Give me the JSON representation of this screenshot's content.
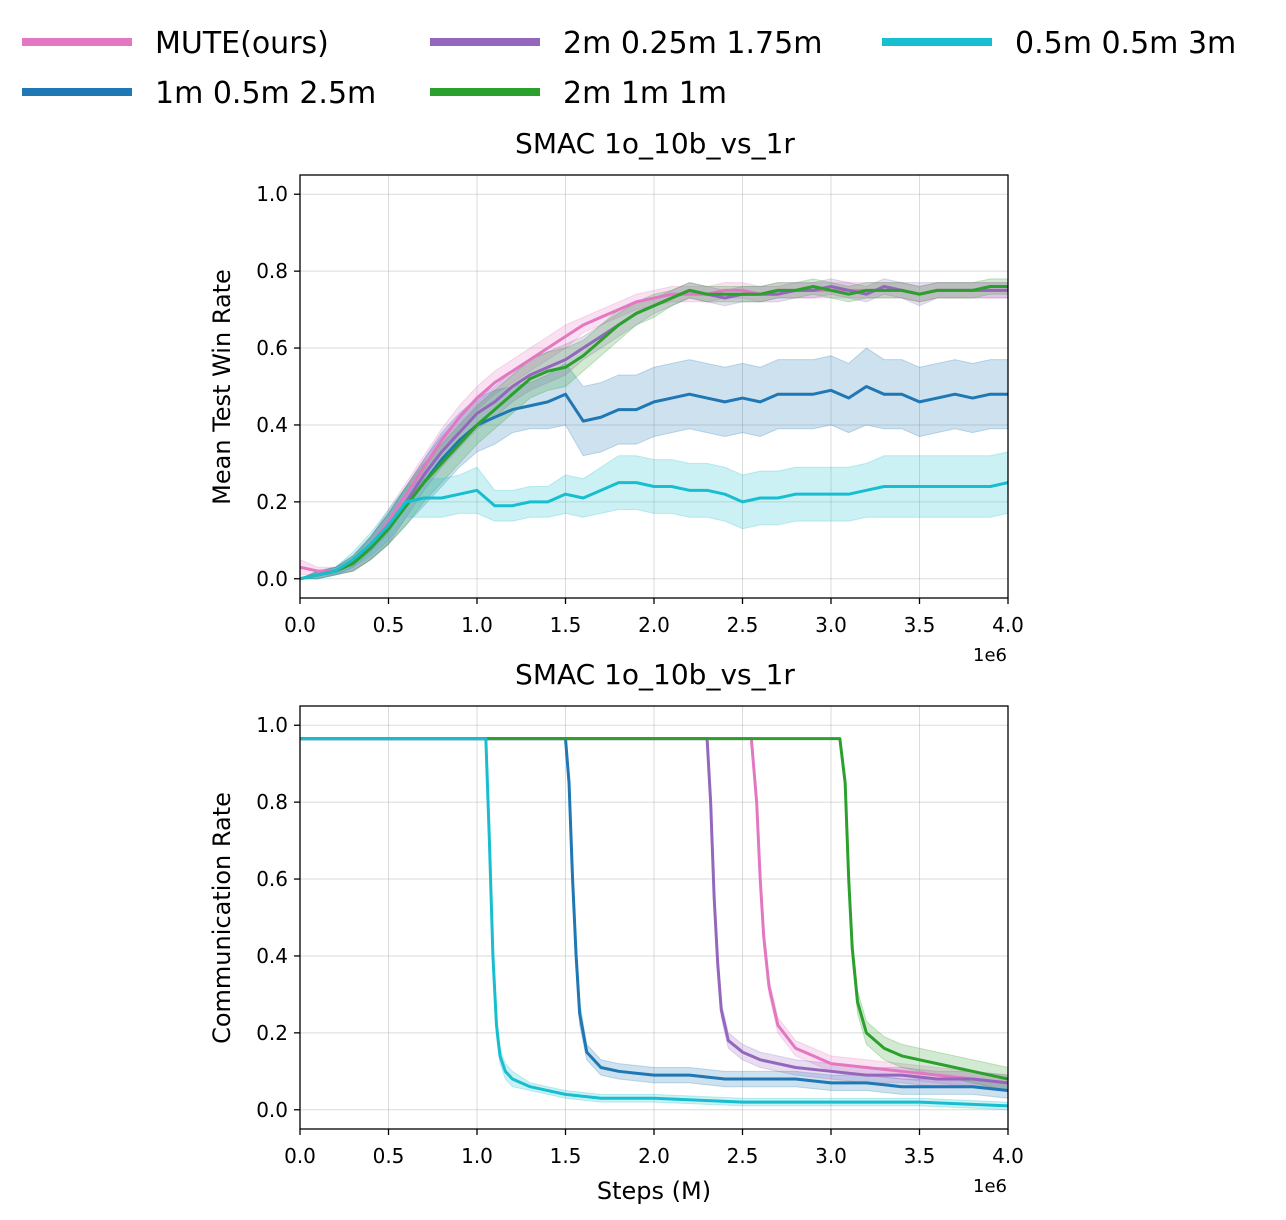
{
  "legend": {
    "entries": [
      {
        "label": "MUTE(ours)",
        "color": "#e377c2"
      },
      {
        "label": "1m 0.5m 2.5m",
        "color": "#1f77b4"
      },
      {
        "label": "2m 0.25m 1.75m",
        "color": "#9467bd"
      },
      {
        "label": "2m 1m 1m",
        "color": "#2ca02c"
      },
      {
        "label": "0.5m 0.5m 3m",
        "color": "#17becf"
      }
    ]
  },
  "chart_data": [
    {
      "type": "line",
      "title": "SMAC 1o_10b_vs_1r",
      "xlabel": "",
      "ylabel": "Mean Test Win Rate",
      "x_offset_label": "1e6",
      "xlim": [
        0,
        4.0
      ],
      "ylim": [
        -0.05,
        1.05
      ],
      "xticks": [
        "0.0",
        "0.5",
        "1.0",
        "1.5",
        "2.0",
        "2.5",
        "3.0",
        "3.5",
        "4.0"
      ],
      "yticks": [
        "0.0",
        "0.2",
        "0.4",
        "0.6",
        "0.8",
        "1.0"
      ],
      "grid": true,
      "series": [
        {
          "name": "MUTE(ours)",
          "color": "#e377c2",
          "x": [
            0,
            0.1,
            0.2,
            0.3,
            0.4,
            0.5,
            0.6,
            0.7,
            0.8,
            0.9,
            1.0,
            1.1,
            1.2,
            1.3,
            1.4,
            1.5,
            1.6,
            1.7,
            1.8,
            1.9,
            2.0,
            2.1,
            2.2,
            2.3,
            2.4,
            2.5,
            2.6,
            2.7,
            2.8,
            2.9,
            3.0,
            3.1,
            3.2,
            3.3,
            3.4,
            3.5,
            3.6,
            3.7,
            3.8,
            3.9,
            4.0
          ],
          "y": [
            0.03,
            0.02,
            0.02,
            0.04,
            0.09,
            0.15,
            0.22,
            0.29,
            0.36,
            0.42,
            0.47,
            0.51,
            0.54,
            0.57,
            0.6,
            0.63,
            0.66,
            0.68,
            0.7,
            0.72,
            0.73,
            0.74,
            0.74,
            0.74,
            0.75,
            0.75,
            0.74,
            0.75,
            0.75,
            0.75,
            0.75,
            0.75,
            0.75,
            0.75,
            0.75,
            0.74,
            0.75,
            0.75,
            0.75,
            0.75,
            0.75
          ],
          "band": [
            0.02,
            0.01,
            0.01,
            0.01,
            0.02,
            0.03,
            0.03,
            0.03,
            0.03,
            0.03,
            0.03,
            0.03,
            0.03,
            0.03,
            0.03,
            0.03,
            0.02,
            0.02,
            0.02,
            0.02,
            0.02,
            0.02,
            0.02,
            0.02,
            0.02,
            0.02,
            0.02,
            0.02,
            0.02,
            0.02,
            0.02,
            0.02,
            0.02,
            0.02,
            0.02,
            0.02,
            0.02,
            0.02,
            0.02,
            0.02,
            0.02
          ]
        },
        {
          "name": "1m 0.5m 2.5m",
          "color": "#1f77b4",
          "x": [
            0,
            0.1,
            0.2,
            0.3,
            0.4,
            0.5,
            0.6,
            0.7,
            0.8,
            0.9,
            1.0,
            1.1,
            1.2,
            1.3,
            1.4,
            1.5,
            1.6,
            1.7,
            1.8,
            1.9,
            2.0,
            2.1,
            2.2,
            2.3,
            2.4,
            2.5,
            2.6,
            2.7,
            2.8,
            2.9,
            3.0,
            3.1,
            3.2,
            3.3,
            3.4,
            3.5,
            3.6,
            3.7,
            3.8,
            3.9,
            4.0
          ],
          "y": [
            0.0,
            0.01,
            0.02,
            0.04,
            0.08,
            0.13,
            0.19,
            0.25,
            0.31,
            0.36,
            0.4,
            0.42,
            0.44,
            0.45,
            0.46,
            0.48,
            0.41,
            0.42,
            0.44,
            0.44,
            0.46,
            0.47,
            0.48,
            0.47,
            0.46,
            0.47,
            0.46,
            0.48,
            0.48,
            0.48,
            0.49,
            0.47,
            0.5,
            0.48,
            0.48,
            0.46,
            0.47,
            0.48,
            0.47,
            0.48,
            0.48
          ],
          "band": [
            0.0,
            0.01,
            0.01,
            0.02,
            0.03,
            0.04,
            0.05,
            0.06,
            0.07,
            0.07,
            0.07,
            0.07,
            0.06,
            0.06,
            0.07,
            0.08,
            0.09,
            0.09,
            0.09,
            0.09,
            0.09,
            0.09,
            0.09,
            0.09,
            0.09,
            0.09,
            0.09,
            0.09,
            0.09,
            0.09,
            0.09,
            0.09,
            0.1,
            0.09,
            0.09,
            0.09,
            0.09,
            0.09,
            0.09,
            0.09,
            0.09
          ]
        },
        {
          "name": "2m 0.25m 1.75m",
          "color": "#9467bd",
          "x": [
            0,
            0.1,
            0.2,
            0.3,
            0.4,
            0.5,
            0.6,
            0.7,
            0.8,
            0.9,
            1.0,
            1.1,
            1.2,
            1.3,
            1.4,
            1.5,
            1.6,
            1.7,
            1.8,
            1.9,
            2.0,
            2.1,
            2.2,
            2.3,
            2.4,
            2.5,
            2.6,
            2.7,
            2.8,
            2.9,
            3.0,
            3.1,
            3.2,
            3.3,
            3.4,
            3.5,
            3.6,
            3.7,
            3.8,
            3.9,
            4.0
          ],
          "y": [
            0.0,
            0.01,
            0.02,
            0.04,
            0.08,
            0.13,
            0.2,
            0.27,
            0.33,
            0.38,
            0.43,
            0.46,
            0.5,
            0.53,
            0.55,
            0.57,
            0.6,
            0.63,
            0.66,
            0.69,
            0.71,
            0.73,
            0.75,
            0.74,
            0.73,
            0.74,
            0.74,
            0.74,
            0.75,
            0.75,
            0.76,
            0.75,
            0.74,
            0.76,
            0.75,
            0.74,
            0.75,
            0.75,
            0.75,
            0.75,
            0.75
          ],
          "band": [
            0.0,
            0.01,
            0.01,
            0.02,
            0.03,
            0.04,
            0.04,
            0.04,
            0.04,
            0.04,
            0.04,
            0.04,
            0.04,
            0.04,
            0.04,
            0.04,
            0.03,
            0.03,
            0.03,
            0.03,
            0.02,
            0.02,
            0.02,
            0.02,
            0.02,
            0.02,
            0.02,
            0.02,
            0.02,
            0.02,
            0.02,
            0.02,
            0.02,
            0.02,
            0.02,
            0.03,
            0.02,
            0.02,
            0.02,
            0.02,
            0.02
          ]
        },
        {
          "name": "2m 1m 1m",
          "color": "#2ca02c",
          "x": [
            0,
            0.1,
            0.2,
            0.3,
            0.4,
            0.5,
            0.6,
            0.7,
            0.8,
            0.9,
            1.0,
            1.1,
            1.2,
            1.3,
            1.4,
            1.5,
            1.6,
            1.7,
            1.8,
            1.9,
            2.0,
            2.1,
            2.2,
            2.3,
            2.4,
            2.5,
            2.6,
            2.7,
            2.8,
            2.9,
            3.0,
            3.1,
            3.2,
            3.3,
            3.4,
            3.5,
            3.6,
            3.7,
            3.8,
            3.9,
            4.0
          ],
          "y": [
            0.0,
            0.01,
            0.02,
            0.04,
            0.08,
            0.13,
            0.19,
            0.25,
            0.3,
            0.35,
            0.4,
            0.44,
            0.48,
            0.52,
            0.54,
            0.55,
            0.58,
            0.62,
            0.66,
            0.69,
            0.71,
            0.73,
            0.75,
            0.74,
            0.74,
            0.74,
            0.74,
            0.75,
            0.75,
            0.76,
            0.75,
            0.74,
            0.75,
            0.75,
            0.75,
            0.74,
            0.75,
            0.75,
            0.75,
            0.76,
            0.76
          ],
          "band": [
            0.0,
            0.01,
            0.01,
            0.02,
            0.03,
            0.04,
            0.05,
            0.05,
            0.05,
            0.05,
            0.05,
            0.05,
            0.05,
            0.05,
            0.05,
            0.05,
            0.04,
            0.04,
            0.04,
            0.03,
            0.03,
            0.02,
            0.02,
            0.02,
            0.02,
            0.02,
            0.02,
            0.02,
            0.02,
            0.02,
            0.02,
            0.02,
            0.02,
            0.02,
            0.02,
            0.02,
            0.02,
            0.02,
            0.02,
            0.02,
            0.02
          ]
        },
        {
          "name": "0.5m 0.5m 3m",
          "color": "#17becf",
          "x": [
            0,
            0.1,
            0.2,
            0.3,
            0.4,
            0.5,
            0.6,
            0.7,
            0.8,
            0.9,
            1.0,
            1.1,
            1.2,
            1.3,
            1.4,
            1.5,
            1.6,
            1.7,
            1.8,
            1.9,
            2.0,
            2.1,
            2.2,
            2.3,
            2.4,
            2.5,
            2.6,
            2.7,
            2.8,
            2.9,
            3.0,
            3.1,
            3.2,
            3.3,
            3.4,
            3.5,
            3.6,
            3.7,
            3.8,
            3.9,
            4.0
          ],
          "y": [
            0.0,
            0.01,
            0.02,
            0.05,
            0.09,
            0.14,
            0.2,
            0.21,
            0.21,
            0.22,
            0.23,
            0.19,
            0.19,
            0.2,
            0.2,
            0.22,
            0.21,
            0.23,
            0.25,
            0.25,
            0.24,
            0.24,
            0.23,
            0.23,
            0.22,
            0.2,
            0.21,
            0.21,
            0.22,
            0.22,
            0.22,
            0.22,
            0.23,
            0.24,
            0.24,
            0.24,
            0.24,
            0.24,
            0.24,
            0.24,
            0.25
          ],
          "band": [
            0.0,
            0.01,
            0.01,
            0.02,
            0.03,
            0.04,
            0.04,
            0.05,
            0.05,
            0.05,
            0.06,
            0.04,
            0.04,
            0.04,
            0.04,
            0.05,
            0.05,
            0.06,
            0.07,
            0.07,
            0.07,
            0.07,
            0.07,
            0.07,
            0.07,
            0.07,
            0.07,
            0.07,
            0.07,
            0.07,
            0.07,
            0.07,
            0.07,
            0.08,
            0.08,
            0.08,
            0.08,
            0.08,
            0.08,
            0.08,
            0.08
          ]
        }
      ]
    },
    {
      "type": "line",
      "title": "SMAC 1o_10b_vs_1r",
      "xlabel": "Steps (M)",
      "ylabel": "Communication Rate",
      "x_offset_label": "1e6",
      "xlim": [
        0,
        4.0
      ],
      "ylim": [
        -0.05,
        1.05
      ],
      "xticks": [
        "0.0",
        "0.5",
        "1.0",
        "1.5",
        "2.0",
        "2.5",
        "3.0",
        "3.5",
        "4.0"
      ],
      "yticks": [
        "0.0",
        "0.2",
        "0.4",
        "0.6",
        "0.8",
        "1.0"
      ],
      "grid": true,
      "series": [
        {
          "name": "MUTE(ours)",
          "color": "#e377c2",
          "x": [
            0,
            2.55,
            2.58,
            2.6,
            2.62,
            2.65,
            2.7,
            2.8,
            2.9,
            3.0,
            3.2,
            3.4,
            3.6,
            3.8,
            4.0
          ],
          "y": [
            0.965,
            0.965,
            0.8,
            0.6,
            0.45,
            0.32,
            0.22,
            0.16,
            0.14,
            0.12,
            0.11,
            0.1,
            0.09,
            0.08,
            0.07
          ],
          "band": [
            0.0,
            0.0,
            0.02,
            0.03,
            0.03,
            0.02,
            0.02,
            0.02,
            0.02,
            0.02,
            0.02,
            0.02,
            0.02,
            0.02,
            0.02
          ]
        },
        {
          "name": "1m 0.5m 2.5m",
          "color": "#1f77b4",
          "x": [
            0,
            1.5,
            1.52,
            1.54,
            1.56,
            1.58,
            1.62,
            1.7,
            1.8,
            2.0,
            2.2,
            2.4,
            2.6,
            2.8,
            3.0,
            3.2,
            3.4,
            3.6,
            3.8,
            4.0
          ],
          "y": [
            0.965,
            0.965,
            0.85,
            0.6,
            0.4,
            0.25,
            0.15,
            0.11,
            0.1,
            0.09,
            0.09,
            0.08,
            0.08,
            0.08,
            0.07,
            0.07,
            0.06,
            0.06,
            0.06,
            0.05
          ],
          "band": [
            0.0,
            0.0,
            0.02,
            0.03,
            0.03,
            0.03,
            0.02,
            0.02,
            0.02,
            0.02,
            0.02,
            0.02,
            0.02,
            0.02,
            0.02,
            0.02,
            0.02,
            0.02,
            0.02,
            0.02
          ]
        },
        {
          "name": "2m 0.25m 1.75m",
          "color": "#9467bd",
          "x": [
            0,
            2.3,
            2.32,
            2.34,
            2.36,
            2.38,
            2.42,
            2.5,
            2.6,
            2.8,
            3.0,
            3.2,
            3.4,
            3.6,
            3.8,
            4.0
          ],
          "y": [
            0.965,
            0.965,
            0.8,
            0.55,
            0.38,
            0.26,
            0.18,
            0.15,
            0.13,
            0.11,
            0.1,
            0.09,
            0.09,
            0.08,
            0.08,
            0.07
          ],
          "band": [
            0.0,
            0.0,
            0.02,
            0.03,
            0.03,
            0.02,
            0.02,
            0.02,
            0.02,
            0.02,
            0.02,
            0.02,
            0.02,
            0.02,
            0.02,
            0.02
          ]
        },
        {
          "name": "2m 1m 1m",
          "color": "#2ca02c",
          "x": [
            0,
            3.05,
            3.08,
            3.1,
            3.12,
            3.15,
            3.2,
            3.3,
            3.4,
            3.5,
            3.6,
            3.7,
            3.8,
            3.9,
            4.0
          ],
          "y": [
            0.965,
            0.965,
            0.85,
            0.6,
            0.42,
            0.28,
            0.2,
            0.16,
            0.14,
            0.13,
            0.12,
            0.11,
            0.1,
            0.09,
            0.08
          ],
          "band": [
            0.0,
            0.0,
            0.02,
            0.03,
            0.03,
            0.03,
            0.03,
            0.03,
            0.03,
            0.03,
            0.03,
            0.03,
            0.03,
            0.03,
            0.03
          ]
        },
        {
          "name": "0.5m 0.5m 3m",
          "color": "#17becf",
          "x": [
            0,
            1.05,
            1.07,
            1.09,
            1.11,
            1.13,
            1.16,
            1.2,
            1.3,
            1.4,
            1.5,
            1.7,
            2.0,
            2.5,
            3.0,
            3.5,
            4.0
          ],
          "y": [
            0.965,
            0.965,
            0.7,
            0.4,
            0.22,
            0.14,
            0.1,
            0.08,
            0.06,
            0.05,
            0.04,
            0.03,
            0.03,
            0.02,
            0.02,
            0.02,
            0.01
          ],
          "band": [
            0.0,
            0.0,
            0.02,
            0.03,
            0.03,
            0.02,
            0.02,
            0.02,
            0.01,
            0.01,
            0.01,
            0.01,
            0.01,
            0.01,
            0.01,
            0.01,
            0.01
          ]
        }
      ]
    }
  ]
}
